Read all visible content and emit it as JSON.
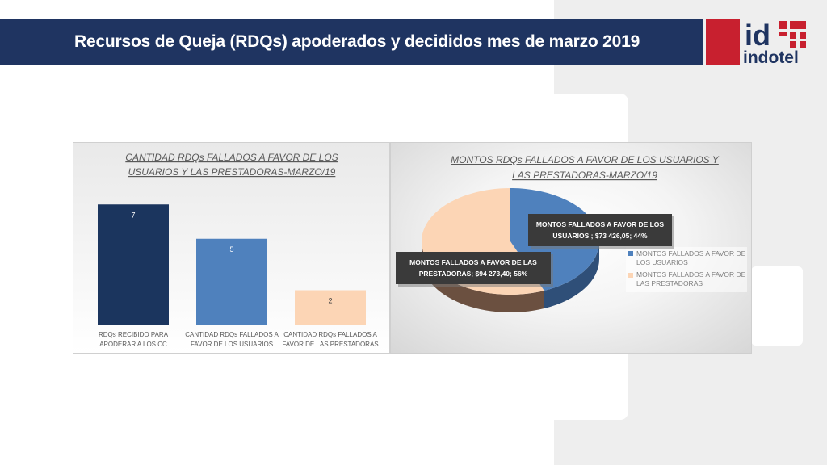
{
  "header": {
    "title": "Recursos de Queja (RDQs) apoderados y decididos mes de marzo  2019"
  },
  "logo": {
    "text_top": "id",
    "text_bottom": "indotel"
  },
  "colors": {
    "navy": "#1f3461",
    "bar_dark": "#1b355e",
    "bar_blue": "#4f81bd",
    "bar_peach": "#fcd5b5",
    "logo_red": "#c8202f"
  },
  "chart_data": [
    {
      "type": "bar",
      "title_line1": "CANTIDAD RDQs FALLADOS A FAVOR DE LOS",
      "title_line2": "USUARIOS Y LAS PRESTADORAS-MARZO/19",
      "categories": [
        {
          "line1": "RDQs RECIBIDO PARA",
          "line2": "APODERAR A LOS CC"
        },
        {
          "line1": "CANTIDAD RDQs FALLADOS A",
          "line2": "FAVOR DE LOS USUARIOS"
        },
        {
          "line1": "CANTIDAD RDQs FALLADOS A",
          "line2": "FAVOR DE LAS PRESTADORAS"
        }
      ],
      "values": [
        7,
        5,
        2
      ],
      "value_labels": [
        "7",
        "5",
        "2"
      ],
      "ylim": [
        0,
        8
      ]
    },
    {
      "type": "pie",
      "title_line1": "MONTOS RDQs FALLADOS A FAVOR DE LOS  USUARIOS Y",
      "title_line2": "LAS PRESTADORAS-MARZO/19",
      "slices": [
        {
          "name": "MONTOS  FALLADOS A FAVOR DE LOS USUARIOS",
          "value": 73426.05,
          "percent": 44,
          "label_line1": "MONTOS  FALLADOS A FAVOR DE LOS",
          "label_line2": "USUARIOS ; $73 426,05; 44%"
        },
        {
          "name": "MONTOS FALLADOS  A FAVOR DE LAS PRESTADORAS",
          "value": 94273.4,
          "percent": 56,
          "label_line1": "MONTOS FALLADOS  A FAVOR DE LAS",
          "label_line2": "PRESTADORAS; $94 273,40; 56%"
        }
      ],
      "legend": [
        {
          "line1": "MONTOS  FALLADOS A FAVOR DE",
          "line2": "LOS USUARIOS"
        },
        {
          "line1": "MONTOS FALLADOS  A FAVOR DE",
          "line2": "LAS PRESTADORAS"
        }
      ],
      "legend_position": "right"
    }
  ]
}
